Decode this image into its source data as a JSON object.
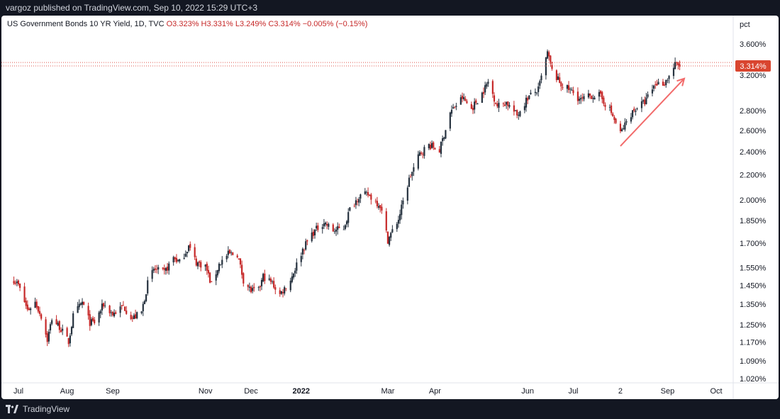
{
  "publish_line": "vargoz published on TradingView.com, Sep 10, 2022 15:29 UTC+3",
  "legend": {
    "symbol": "US Government Bonds 10 YR Yield, 1D, TVC",
    "open": "O3.323%",
    "high": "H3.331%",
    "low": "L3.249%",
    "close": "C3.314%",
    "change": "−0.005% (−0.15%)"
  },
  "footer_brand": "TradingView",
  "colors": {
    "up": "#26323f",
    "down": "#c62828",
    "price_line": "#e05a4f",
    "arrow": "#f26b6b",
    "label_bg": "#d9452f"
  },
  "chart_data": {
    "type": "candlestick",
    "title": "US Government Bonds 10 YR Yield, 1D, TVC",
    "ylabel": "pct",
    "yscale": "log",
    "ylim": [
      1.0,
      3.85
    ],
    "grid": false,
    "y_ticks": [
      "3.600%",
      "3.200%",
      "2.800%",
      "2.600%",
      "2.400%",
      "2.200%",
      "2.000%",
      "1.850%",
      "1.700%",
      "1.550%",
      "1.450%",
      "1.350%",
      "1.250%",
      "1.170%",
      "1.090%",
      "1.020%"
    ],
    "x_ticks": [
      {
        "label": "Jul",
        "date": "2021-07-01"
      },
      {
        "label": "Aug",
        "date": "2021-08-02"
      },
      {
        "label": "Sep",
        "date": "2021-09-01"
      },
      {
        "label": "Nov",
        "date": "2021-11-01"
      },
      {
        "label": "Dec",
        "date": "2021-12-01"
      },
      {
        "label": "2022",
        "date": "2022-01-03"
      },
      {
        "label": "Mar",
        "date": "2022-03-01"
      },
      {
        "label": "Apr",
        "date": "2022-04-01"
      },
      {
        "label": "Jun",
        "date": "2022-06-01"
      },
      {
        "label": "Jul",
        "date": "2022-07-01"
      },
      {
        "label": "2",
        "date": "2022-08-01"
      },
      {
        "label": "Sep",
        "date": "2022-09-01"
      },
      {
        "label": "Oct",
        "date": "2022-10-03"
      }
    ],
    "last_price_label": "3.314%",
    "last_price": 3.314,
    "close_series": [
      [
        "2021-06-28",
        1.48
      ],
      [
        "2021-07-01",
        1.45
      ],
      [
        "2021-07-07",
        1.32
      ],
      [
        "2021-07-12",
        1.36
      ],
      [
        "2021-07-16",
        1.29
      ],
      [
        "2021-07-20",
        1.18
      ],
      [
        "2021-07-23",
        1.28
      ],
      [
        "2021-07-28",
        1.24
      ],
      [
        "2021-08-03",
        1.17
      ],
      [
        "2021-08-06",
        1.29
      ],
      [
        "2021-08-12",
        1.36
      ],
      [
        "2021-08-17",
        1.26
      ],
      [
        "2021-08-20",
        1.26
      ],
      [
        "2021-08-26",
        1.35
      ],
      [
        "2021-09-01",
        1.3
      ],
      [
        "2021-09-08",
        1.34
      ],
      [
        "2021-09-14",
        1.28
      ],
      [
        "2021-09-20",
        1.31
      ],
      [
        "2021-09-24",
        1.46
      ],
      [
        "2021-09-28",
        1.54
      ],
      [
        "2021-10-05",
        1.52
      ],
      [
        "2021-10-11",
        1.61
      ],
      [
        "2021-10-15",
        1.58
      ],
      [
        "2021-10-21",
        1.68
      ],
      [
        "2021-10-26",
        1.58
      ],
      [
        "2021-11-01",
        1.56
      ],
      [
        "2021-11-05",
        1.45
      ],
      [
        "2021-11-10",
        1.57
      ],
      [
        "2021-11-16",
        1.63
      ],
      [
        "2021-11-22",
        1.63
      ],
      [
        "2021-11-26",
        1.48
      ],
      [
        "2021-12-01",
        1.42
      ],
      [
        "2021-12-06",
        1.42
      ],
      [
        "2021-12-09",
        1.5
      ],
      [
        "2021-12-15",
        1.46
      ],
      [
        "2021-12-20",
        1.4
      ],
      [
        "2021-12-27",
        1.48
      ],
      [
        "2022-01-04",
        1.66
      ],
      [
        "2022-01-10",
        1.76
      ],
      [
        "2022-01-18",
        1.84
      ],
      [
        "2022-01-24",
        1.78
      ],
      [
        "2022-01-31",
        1.8
      ],
      [
        "2022-02-04",
        1.93
      ],
      [
        "2022-02-10",
        2.03
      ],
      [
        "2022-02-16",
        2.04
      ],
      [
        "2022-02-24",
        1.96
      ],
      [
        "2022-03-01",
        1.72
      ],
      [
        "2022-03-08",
        1.86
      ],
      [
        "2022-03-15",
        2.16
      ],
      [
        "2022-03-22",
        2.38
      ],
      [
        "2022-03-28",
        2.46
      ],
      [
        "2022-04-04",
        2.41
      ],
      [
        "2022-04-11",
        2.78
      ],
      [
        "2022-04-19",
        2.94
      ],
      [
        "2022-04-25",
        2.82
      ],
      [
        "2022-05-02",
        2.99
      ],
      [
        "2022-05-06",
        3.12
      ],
      [
        "2022-05-12",
        2.85
      ],
      [
        "2022-05-18",
        2.89
      ],
      [
        "2022-05-25",
        2.75
      ],
      [
        "2022-06-01",
        2.94
      ],
      [
        "2022-06-08",
        3.03
      ],
      [
        "2022-06-14",
        3.48
      ],
      [
        "2022-06-17",
        3.25
      ],
      [
        "2022-06-23",
        3.09
      ],
      [
        "2022-06-30",
        3.01
      ],
      [
        "2022-07-06",
        2.91
      ],
      [
        "2022-07-12",
        2.96
      ],
      [
        "2022-07-18",
        2.97
      ],
      [
        "2022-07-25",
        2.81
      ],
      [
        "2022-08-01",
        2.57
      ],
      [
        "2022-08-08",
        2.77
      ],
      [
        "2022-08-12",
        2.84
      ],
      [
        "2022-08-17",
        2.89
      ],
      [
        "2022-08-24",
        3.1
      ],
      [
        "2022-08-30",
        3.11
      ],
      [
        "2022-09-02",
        3.19
      ],
      [
        "2022-09-06",
        3.33
      ],
      [
        "2022-09-09",
        3.314
      ]
    ],
    "annotations": [
      {
        "type": "arrow",
        "from": [
          "2022-08-01",
          2.45
        ],
        "to": [
          "2022-09-12",
          3.16
        ]
      },
      {
        "type": "hline",
        "y": 3.314,
        "style": "dotted"
      },
      {
        "type": "hline",
        "y": 3.33,
        "style": "dotted"
      }
    ]
  }
}
